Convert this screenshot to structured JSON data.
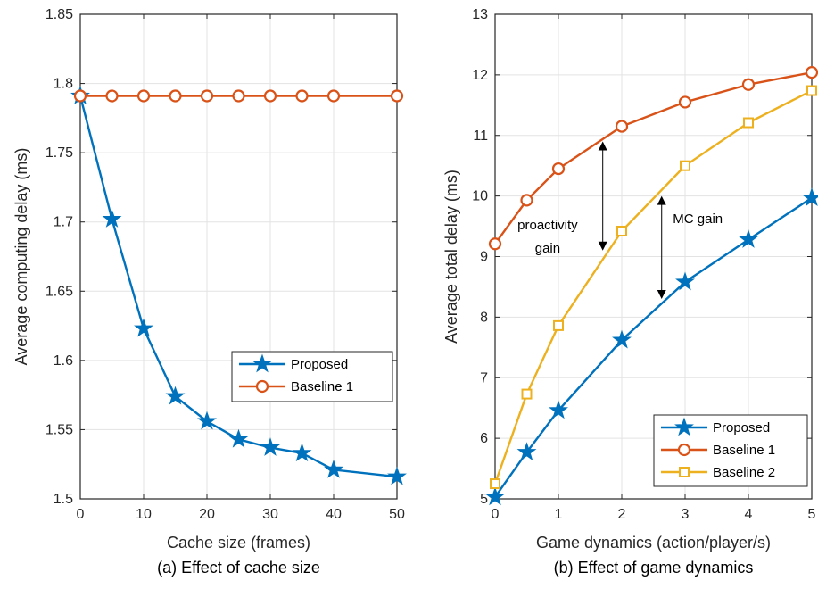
{
  "colors": {
    "proposed": "#0072BD",
    "baseline1": "#D95319",
    "baseline2": "#EDB120"
  },
  "chart_data": [
    {
      "type": "line",
      "caption": "(a) Effect of cache size",
      "xlabel": "Cache size (frames)",
      "ylabel": "Average computing delay (ms)",
      "xlim": [
        0,
        50
      ],
      "ylim": [
        1.5,
        1.85
      ],
      "xticks": [
        0,
        10,
        20,
        30,
        40,
        50
      ],
      "yticks": [
        1.5,
        1.55,
        1.6,
        1.65,
        1.7,
        1.75,
        1.8,
        1.85
      ],
      "grid": true,
      "legend_position": "center-right",
      "series": [
        {
          "name": "Proposed",
          "marker": "star",
          "color_key": "proposed",
          "x": [
            0,
            5,
            10,
            15,
            20,
            25,
            30,
            35,
            40,
            50
          ],
          "y": [
            1.791,
            1.702,
            1.623,
            1.574,
            1.556,
            1.543,
            1.537,
            1.533,
            1.521,
            1.516
          ]
        },
        {
          "name": "Baseline 1",
          "marker": "circle",
          "color_key": "baseline1",
          "x": [
            0,
            5,
            10,
            15,
            20,
            25,
            30,
            35,
            40,
            50
          ],
          "y": [
            1.791,
            1.791,
            1.791,
            1.791,
            1.791,
            1.791,
            1.791,
            1.791,
            1.791,
            1.791
          ]
        }
      ],
      "annotations": []
    },
    {
      "type": "line",
      "caption": "(b) Effect of game dynamics",
      "xlabel": "Game dynamics (action/player/s)",
      "ylabel": "Average total delay (ms)",
      "xlim": [
        0,
        5
      ],
      "ylim": [
        5,
        13
      ],
      "xticks": [
        0,
        1,
        2,
        3,
        4,
        5
      ],
      "yticks": [
        5,
        6,
        7,
        8,
        9,
        10,
        11,
        12,
        13
      ],
      "grid": true,
      "legend_position": "bottom-right",
      "series": [
        {
          "name": "Proposed",
          "marker": "star",
          "color_key": "proposed",
          "x": [
            0,
            0.5,
            1,
            2,
            3,
            4,
            5
          ],
          "y": [
            5.03,
            5.77,
            6.46,
            7.62,
            8.58,
            9.28,
            9.97
          ]
        },
        {
          "name": "Baseline 1",
          "marker": "circle",
          "color_key": "baseline1",
          "x": [
            0,
            0.5,
            1,
            2,
            3,
            4,
            5
          ],
          "y": [
            9.21,
            9.93,
            10.45,
            11.15,
            11.55,
            11.84,
            12.04
          ]
        },
        {
          "name": "Baseline 2",
          "marker": "square",
          "color_key": "baseline2",
          "x": [
            0,
            0.5,
            1,
            2,
            3,
            4,
            5
          ],
          "y": [
            5.25,
            6.73,
            7.86,
            9.42,
            10.5,
            11.21,
            11.74
          ]
        }
      ],
      "annotations": [
        {
          "text": [
            "proactivity",
            "gain"
          ],
          "arrow_x": 1.7,
          "arrow_from": 10.9,
          "arrow_to": 9.1,
          "label_x": 0.83,
          "label_y": 9.45
        },
        {
          "text": [
            "MC gain"
          ],
          "arrow_x": 2.63,
          "arrow_from": 10.0,
          "arrow_to": 8.3,
          "label_x": 3.2,
          "label_y": 9.55
        }
      ]
    }
  ]
}
